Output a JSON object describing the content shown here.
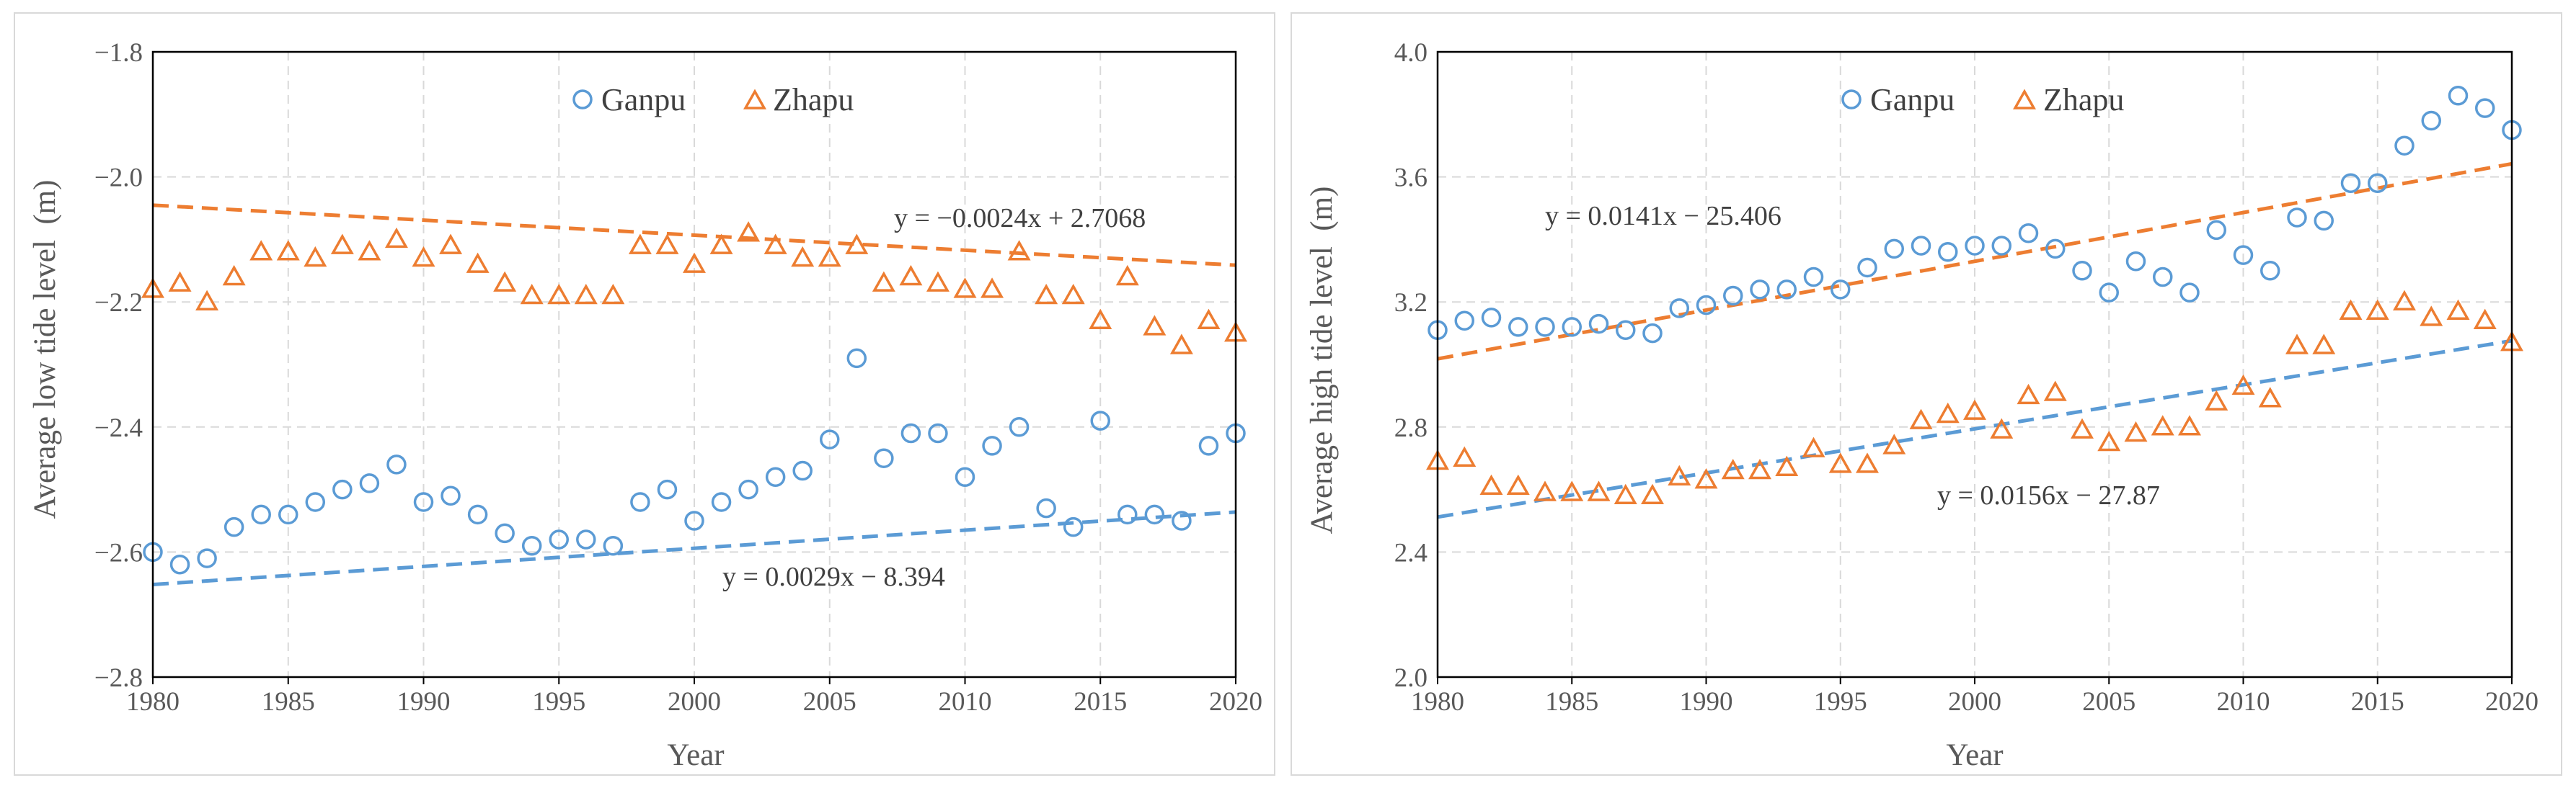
{
  "colors": {
    "ganpu": "#5B9BD5",
    "zhapu": "#ED7D31",
    "grid": "#D9D9D9",
    "axis": "#000000",
    "text": "#595959"
  },
  "chart_data": [
    {
      "type": "scatter",
      "title": "",
      "xlabel": "Year",
      "ylabel": "Average low tide level  (m)",
      "xlim": [
        1980,
        2020
      ],
      "ylim": [
        -2.8,
        -1.8
      ],
      "xticks": [
        1980,
        1985,
        1990,
        1995,
        2000,
        2005,
        2010,
        2015,
        2020
      ],
      "yticks": [
        -1.8,
        -2.0,
        -2.2,
        -2.4,
        -2.6,
        -2.8
      ],
      "xtick_labels": [
        "1980",
        "1985",
        "1990",
        "1995",
        "2000",
        "2005",
        "2010",
        "2015",
        "2020"
      ],
      "ytick_labels": [
        "−1.8",
        "−2.0",
        "−2.2",
        "−2.4",
        "−2.6",
        "−2.8"
      ],
      "grid": true,
      "legend": "top-center",
      "series": [
        {
          "name": "Ganpu",
          "marker": "circle",
          "x": [
            1980,
            1981,
            1982,
            1983,
            1984,
            1985,
            1986,
            1987,
            1988,
            1989,
            1990,
            1991,
            1992,
            1993,
            1994,
            1995,
            1996,
            1997,
            1998,
            1999,
            2000,
            2001,
            2002,
            2003,
            2004,
            2005,
            2006,
            2007,
            2008,
            2009,
            2010,
            2011,
            2012,
            2013,
            2014,
            2015,
            2016,
            2017,
            2018,
            2019,
            2020
          ],
          "y": [
            -2.6,
            -2.62,
            -2.61,
            -2.56,
            -2.54,
            -2.54,
            -2.52,
            -2.5,
            -2.49,
            -2.46,
            -2.52,
            -2.51,
            -2.54,
            -2.57,
            -2.59,
            -2.58,
            -2.58,
            -2.59,
            -2.52,
            -2.5,
            -2.55,
            -2.52,
            -2.5,
            -2.48,
            -2.47,
            -2.42,
            -2.29,
            -2.45,
            -2.41,
            -2.41,
            -2.48,
            -2.43,
            -2.4,
            -2.53,
            -2.56,
            -2.39,
            -2.54,
            -2.54,
            -2.55,
            -2.43,
            -2.41
          ],
          "trend": {
            "slope": 0.0029,
            "intercept": -8.394
          },
          "equation": "y = 0.0029x − 8.394"
        },
        {
          "name": "Zhapu",
          "marker": "triangle",
          "x": [
            1980,
            1981,
            1982,
            1983,
            1984,
            1985,
            1986,
            1987,
            1988,
            1989,
            1990,
            1991,
            1992,
            1993,
            1994,
            1995,
            1996,
            1997,
            1998,
            1999,
            2000,
            2001,
            2002,
            2003,
            2004,
            2005,
            2006,
            2007,
            2008,
            2009,
            2010,
            2011,
            2012,
            2013,
            2014,
            2015,
            2016,
            2017,
            2018,
            2019,
            2020
          ],
          "y": [
            -2.18,
            -2.17,
            -2.2,
            -2.16,
            -2.12,
            -2.12,
            -2.13,
            -2.11,
            -2.12,
            -2.1,
            -2.13,
            -2.11,
            -2.14,
            -2.17,
            -2.19,
            -2.19,
            -2.19,
            -2.19,
            -2.11,
            -2.11,
            -2.14,
            -2.11,
            -2.09,
            -2.11,
            -2.13,
            -2.13,
            -2.11,
            -2.17,
            -2.16,
            -2.17,
            -2.18,
            -2.18,
            -2.12,
            -2.19,
            -2.19,
            -2.23,
            -2.16,
            -2.24,
            -2.27,
            -2.23,
            -2.25
          ],
          "trend": {
            "slope": -0.0024,
            "intercept": 2.7068
          },
          "equation": "y = −0.0024x + 2.7068"
        }
      ]
    },
    {
      "type": "scatter",
      "title": "",
      "xlabel": "Year",
      "ylabel": "Average high tide level  (m)",
      "xlim": [
        1980,
        2020
      ],
      "ylim": [
        2.0,
        4.0
      ],
      "xticks": [
        1980,
        1985,
        1990,
        1995,
        2000,
        2005,
        2010,
        2015,
        2020
      ],
      "yticks": [
        4.0,
        3.6,
        3.2,
        2.8,
        2.4,
        2.0
      ],
      "xtick_labels": [
        "1980",
        "1985",
        "1990",
        "1995",
        "2000",
        "2005",
        "2010",
        "2015",
        "2020"
      ],
      "ytick_labels": [
        "4.0",
        "3.6",
        "3.2",
        "2.8",
        "2.4",
        "2.0"
      ],
      "grid": true,
      "legend": "top-center",
      "series": [
        {
          "name": "Ganpu",
          "marker": "circle",
          "x": [
            1980,
            1981,
            1982,
            1983,
            1984,
            1985,
            1986,
            1987,
            1988,
            1989,
            1990,
            1991,
            1992,
            1993,
            1994,
            1995,
            1996,
            1997,
            1998,
            1999,
            2000,
            2001,
            2002,
            2003,
            2004,
            2005,
            2006,
            2007,
            2008,
            2009,
            2010,
            2011,
            2012,
            2013,
            2014,
            2015,
            2016,
            2017,
            2018,
            2019,
            2020
          ],
          "y": [
            3.11,
            3.14,
            3.15,
            3.12,
            3.12,
            3.12,
            3.13,
            3.11,
            3.1,
            3.18,
            3.19,
            3.22,
            3.24,
            3.24,
            3.28,
            3.24,
            3.31,
            3.37,
            3.38,
            3.36,
            3.38,
            3.38,
            3.42,
            3.37,
            3.3,
            3.23,
            3.33,
            3.28,
            3.23,
            3.43,
            3.35,
            3.3,
            3.47,
            3.46,
            3.58,
            3.58,
            3.7,
            3.78,
            3.86,
            3.82,
            3.75
          ],
          "trend": {
            "slope": 0.0141,
            "intercept": -25.406
          },
          "equation": "y = 0.0141x − 25.406"
        },
        {
          "name": "Zhapu",
          "marker": "triangle",
          "x": [
            1980,
            1981,
            1982,
            1983,
            1984,
            1985,
            1986,
            1987,
            1988,
            1989,
            1990,
            1991,
            1992,
            1993,
            1994,
            1995,
            1996,
            1997,
            1998,
            1999,
            2000,
            2001,
            2002,
            2003,
            2004,
            2005,
            2006,
            2007,
            2008,
            2009,
            2010,
            2011,
            2012,
            2013,
            2014,
            2015,
            2016,
            2017,
            2018,
            2019,
            2020
          ],
          "y": [
            2.69,
            2.7,
            2.61,
            2.61,
            2.59,
            2.59,
            2.59,
            2.58,
            2.58,
            2.64,
            2.63,
            2.66,
            2.66,
            2.67,
            2.73,
            2.68,
            2.68,
            2.74,
            2.82,
            2.84,
            2.85,
            2.79,
            2.9,
            2.91,
            2.79,
            2.75,
            2.78,
            2.8,
            2.8,
            2.88,
            2.93,
            2.89,
            3.06,
            3.06,
            3.17,
            3.17,
            3.2,
            3.15,
            3.17,
            3.14,
            3.07
          ],
          "trend": {
            "slope": 0.0156,
            "intercept": -27.87
          },
          "equation": "y = 0.0156x − 27.87"
        }
      ]
    }
  ]
}
